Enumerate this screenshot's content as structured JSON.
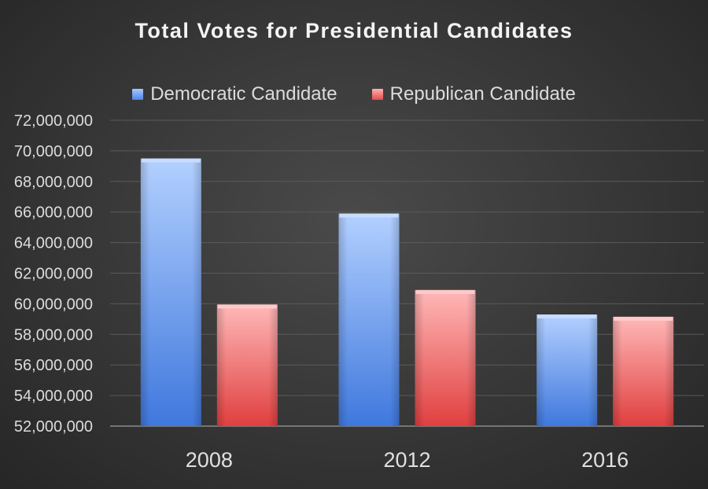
{
  "chart_data": {
    "type": "bar",
    "title": "Total Votes for Presidential Candidates",
    "categories": [
      "2008",
      "2012",
      "2016"
    ],
    "series": [
      {
        "name": "Democratic Candidate",
        "values": [
          69500000,
          65900000,
          59300000
        ],
        "color": "#5b8fe8"
      },
      {
        "name": "Republican Candidate",
        "values": [
          59950000,
          60900000,
          59150000
        ],
        "color": "#e85656"
      }
    ],
    "ylim": [
      52000000,
      72000000
    ],
    "yticks": [
      "52,000,000",
      "54,000,000",
      "56,000,000",
      "58,000,000",
      "60,000,000",
      "62,000,000",
      "64,000,000",
      "66,000,000",
      "68,000,000",
      "70,000,000",
      "72,000,000"
    ],
    "grid": true,
    "legend": "top"
  }
}
